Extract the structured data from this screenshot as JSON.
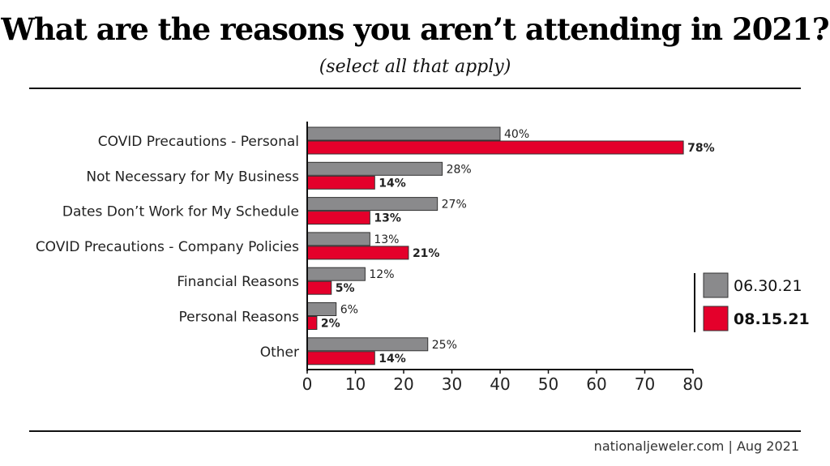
{
  "title": "What are the reasons you aren’t attending in 2021?",
  "subtitle": "(select all that apply)",
  "footer": "nationaljeweler.com  |  Aug 2021",
  "chart_data": {
    "type": "bar",
    "orientation": "horizontal",
    "title": "What are the reasons you aren’t attending in 2021?",
    "subtitle": "(select all that apply)",
    "categories": [
      "COVID Precautions - Personal",
      "Not Necessary for My Business",
      "Dates Don’t Work for My Schedule",
      "COVID Precautions - Company Policies",
      "Financial Reasons",
      "Personal Reasons",
      "Other"
    ],
    "series": [
      {
        "name": "06.30.21",
        "color": "#8a8a8c",
        "values": [
          40,
          28,
          27,
          13,
          12,
          6,
          25
        ]
      },
      {
        "name": "08.15.21",
        "color": "#e4002b",
        "values": [
          78,
          14,
          13,
          21,
          5,
          2,
          14
        ]
      }
    ],
    "xlim": [
      0,
      80
    ],
    "xticks": [
      0,
      10,
      20,
      30,
      40,
      50,
      60,
      70,
      80
    ],
    "value_suffix": "%",
    "grid": false,
    "legend_position": "right"
  }
}
